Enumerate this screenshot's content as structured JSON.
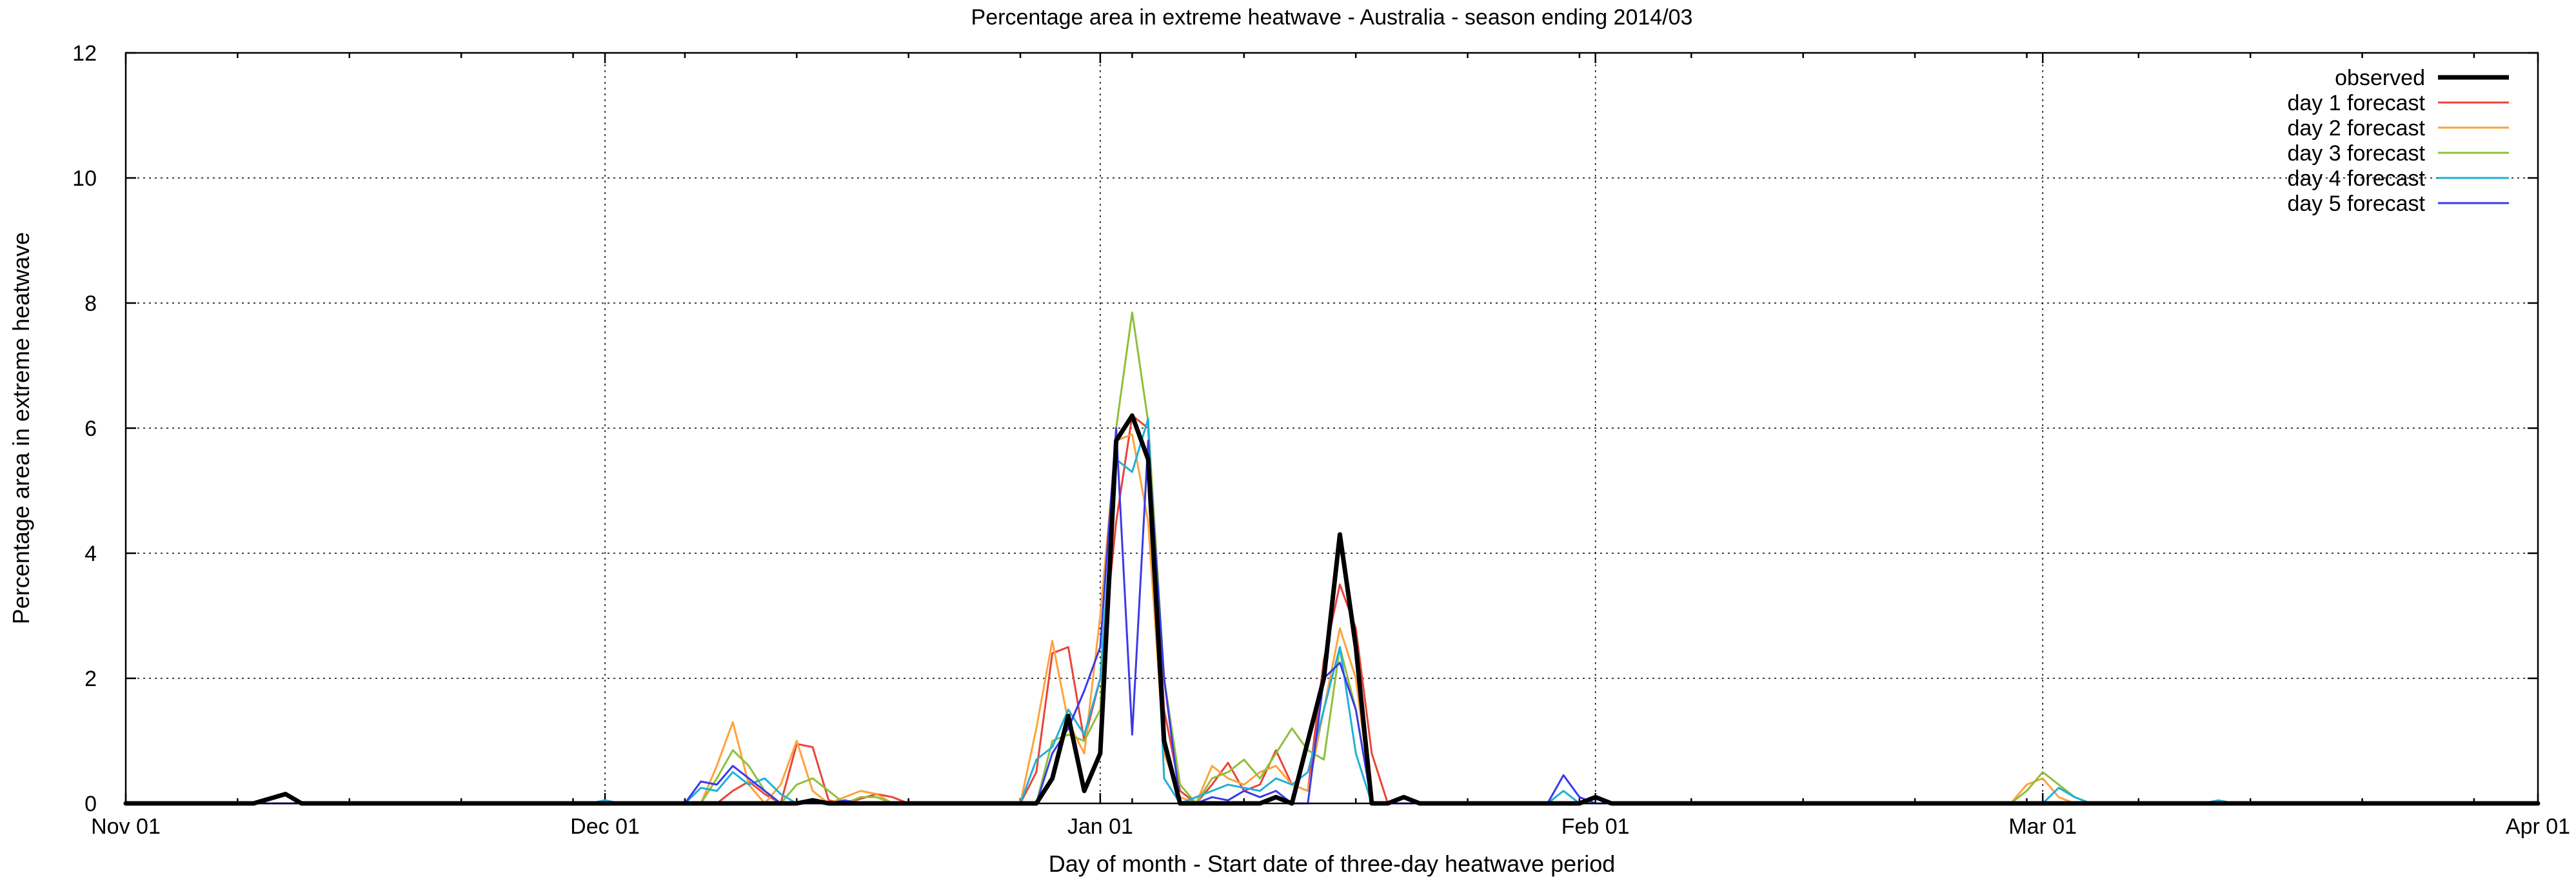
{
  "chart_data": {
    "type": "line",
    "title": "Percentage area in extreme heatwave - Australia - season ending 2014/03",
    "xlabel": "Day of month - Start date of three-day heatwave period",
    "ylabel": "Percentage area in extreme heatwave",
    "xlim": [
      0,
      151
    ],
    "ylim": [
      0,
      12
    ],
    "x_unit": "days since Nov 01 2013",
    "x_ticks": [
      {
        "label": "Nov 01",
        "value": 0
      },
      {
        "label": "Dec 01",
        "value": 30
      },
      {
        "label": "Jan 01",
        "value": 61
      },
      {
        "label": "Feb 01",
        "value": 92
      },
      {
        "label": "Mar 01",
        "value": 120
      },
      {
        "label": "Apr 01",
        "value": 151
      }
    ],
    "y_ticks": [
      0,
      2,
      4,
      6,
      8,
      10,
      12
    ],
    "grid": true,
    "legend_position": "top-right",
    "series": [
      {
        "name": "observed",
        "color": "#000000",
        "width": 7,
        "points": [
          [
            0,
            0
          ],
          [
            8,
            0
          ],
          [
            10,
            0.15
          ],
          [
            11,
            0
          ],
          [
            40,
            0
          ],
          [
            42,
            0
          ],
          [
            43,
            0.05
          ],
          [
            44,
            0
          ],
          [
            57,
            0
          ],
          [
            58,
            0.4
          ],
          [
            59,
            1.4
          ],
          [
            60,
            0.2
          ],
          [
            61,
            0.8
          ],
          [
            62,
            5.8
          ],
          [
            63,
            6.2
          ],
          [
            64,
            5.5
          ],
          [
            65,
            1.0
          ],
          [
            66,
            0
          ],
          [
            71,
            0
          ],
          [
            72,
            0.1
          ],
          [
            73,
            0
          ],
          [
            75,
            2.0
          ],
          [
            76,
            4.3
          ],
          [
            77,
            2.5
          ],
          [
            78,
            0
          ],
          [
            79,
            0
          ],
          [
            80,
            0.1
          ],
          [
            81,
            0
          ],
          [
            91,
            0
          ],
          [
            92,
            0.1
          ],
          [
            93,
            0
          ],
          [
            151,
            0
          ]
        ]
      },
      {
        "name": "day 1 forecast",
        "color": "#e8443a",
        "width": 3,
        "points": [
          [
            0,
            0
          ],
          [
            37,
            0
          ],
          [
            38,
            0.2
          ],
          [
            39,
            0.35
          ],
          [
            40,
            0.15
          ],
          [
            41,
            0
          ],
          [
            42,
            0.95
          ],
          [
            43,
            0.9
          ],
          [
            44,
            0.05
          ],
          [
            45,
            0
          ],
          [
            47,
            0.15
          ],
          [
            48,
            0.1
          ],
          [
            49,
            0
          ],
          [
            56,
            0
          ],
          [
            57,
            0.5
          ],
          [
            58,
            2.4
          ],
          [
            59,
            2.5
          ],
          [
            60,
            1.0
          ],
          [
            61,
            2.0
          ],
          [
            62,
            4.5
          ],
          [
            63,
            6.2
          ],
          [
            64,
            6.0
          ],
          [
            65,
            1.5
          ],
          [
            66,
            0.2
          ],
          [
            67,
            0
          ],
          [
            68,
            0.3
          ],
          [
            69,
            0.65
          ],
          [
            70,
            0.2
          ],
          [
            71,
            0.3
          ],
          [
            72,
            0.85
          ],
          [
            73,
            0.3
          ],
          [
            74,
            0.2
          ],
          [
            75,
            2.3
          ],
          [
            76,
            3.5
          ],
          [
            77,
            2.8
          ],
          [
            78,
            0.8
          ],
          [
            79,
            0
          ],
          [
            151,
            0
          ]
        ]
      },
      {
        "name": "day 2 forecast",
        "color": "#ffa23a",
        "width": 3,
        "points": [
          [
            0,
            0
          ],
          [
            36,
            0
          ],
          [
            37,
            0.6
          ],
          [
            38,
            1.3
          ],
          [
            39,
            0.3
          ],
          [
            40,
            0
          ],
          [
            41,
            0.3
          ],
          [
            42,
            1.0
          ],
          [
            43,
            0.2
          ],
          [
            44,
            0
          ],
          [
            45,
            0.1
          ],
          [
            46,
            0.2
          ],
          [
            47,
            0.15
          ],
          [
            48,
            0
          ],
          [
            56,
            0
          ],
          [
            57,
            1.2
          ],
          [
            58,
            2.6
          ],
          [
            59,
            1.3
          ],
          [
            60,
            0.8
          ],
          [
            61,
            3.0
          ],
          [
            62,
            5.8
          ],
          [
            63,
            5.9
          ],
          [
            64,
            4.5
          ],
          [
            65,
            0.8
          ],
          [
            66,
            0.1
          ],
          [
            67,
            0
          ],
          [
            68,
            0.6
          ],
          [
            69,
            0.4
          ],
          [
            70,
            0.3
          ],
          [
            71,
            0.5
          ],
          [
            72,
            0.6
          ],
          [
            73,
            0.3
          ],
          [
            74,
            0.2
          ],
          [
            75,
            1.5
          ],
          [
            76,
            2.8
          ],
          [
            77,
            2.0
          ],
          [
            78,
            0
          ],
          [
            118,
            0
          ],
          [
            119,
            0.3
          ],
          [
            120,
            0.4
          ],
          [
            121,
            0.1
          ],
          [
            122,
            0
          ],
          [
            151,
            0
          ]
        ]
      },
      {
        "name": "day 3 forecast",
        "color": "#8fbf3a",
        "width": 3,
        "points": [
          [
            0,
            0
          ],
          [
            36,
            0
          ],
          [
            37,
            0.4
          ],
          [
            38,
            0.85
          ],
          [
            39,
            0.6
          ],
          [
            40,
            0.2
          ],
          [
            41,
            0
          ],
          [
            42,
            0.3
          ],
          [
            43,
            0.4
          ],
          [
            44,
            0.2
          ],
          [
            45,
            0
          ],
          [
            46,
            0.1
          ],
          [
            47,
            0.1
          ],
          [
            48,
            0
          ],
          [
            57,
            0
          ],
          [
            58,
            1.0
          ],
          [
            59,
            1.1
          ],
          [
            60,
            1.0
          ],
          [
            61,
            1.5
          ],
          [
            62,
            6.0
          ],
          [
            63,
            7.85
          ],
          [
            64,
            6.1
          ],
          [
            65,
            2.0
          ],
          [
            66,
            0.3
          ],
          [
            67,
            0
          ],
          [
            68,
            0.4
          ],
          [
            69,
            0.5
          ],
          [
            70,
            0.7
          ],
          [
            71,
            0.4
          ],
          [
            72,
            0.8
          ],
          [
            73,
            1.2
          ],
          [
            74,
            0.85
          ],
          [
            75,
            0.7
          ],
          [
            76,
            2.5
          ],
          [
            77,
            1.5
          ],
          [
            78,
            0
          ],
          [
            118,
            0
          ],
          [
            119,
            0.2
          ],
          [
            120,
            0.5
          ],
          [
            121,
            0.3
          ],
          [
            122,
            0.1
          ],
          [
            123,
            0
          ],
          [
            151,
            0
          ]
        ]
      },
      {
        "name": "day 4 forecast",
        "color": "#1fb0d8",
        "width": 3,
        "points": [
          [
            0,
            0
          ],
          [
            29,
            0
          ],
          [
            30,
            0.05
          ],
          [
            31,
            0
          ],
          [
            35,
            0
          ],
          [
            36,
            0.25
          ],
          [
            37,
            0.2
          ],
          [
            38,
            0.5
          ],
          [
            39,
            0.3
          ],
          [
            40,
            0.4
          ],
          [
            41,
            0.15
          ],
          [
            42,
            0
          ],
          [
            56,
            0
          ],
          [
            57,
            0.7
          ],
          [
            58,
            0.9
          ],
          [
            59,
            1.5
          ],
          [
            60,
            1.1
          ],
          [
            61,
            2.0
          ],
          [
            62,
            5.5
          ],
          [
            63,
            5.3
          ],
          [
            64,
            6.15
          ],
          [
            65,
            0.4
          ],
          [
            66,
            0
          ],
          [
            67,
            0.1
          ],
          [
            68,
            0.2
          ],
          [
            69,
            0.3
          ],
          [
            70,
            0.25
          ],
          [
            71,
            0.2
          ],
          [
            72,
            0.4
          ],
          [
            73,
            0.3
          ],
          [
            74,
            0.5
          ],
          [
            75,
            1.5
          ],
          [
            76,
            2.5
          ],
          [
            77,
            0.8
          ],
          [
            78,
            0
          ],
          [
            89,
            0
          ],
          [
            90,
            0.2
          ],
          [
            91,
            0
          ],
          [
            120,
            0
          ],
          [
            121,
            0.25
          ],
          [
            122,
            0.1
          ],
          [
            123,
            0
          ],
          [
            130,
            0
          ],
          [
            131,
            0.05
          ],
          [
            132,
            0
          ],
          [
            151,
            0
          ]
        ]
      },
      {
        "name": "day 5 forecast",
        "color": "#3a3ae8",
        "width": 3,
        "points": [
          [
            0,
            0
          ],
          [
            35,
            0
          ],
          [
            36,
            0.35
          ],
          [
            37,
            0.3
          ],
          [
            38,
            0.6
          ],
          [
            39,
            0.4
          ],
          [
            40,
            0.2
          ],
          [
            41,
            0
          ],
          [
            44,
            0
          ],
          [
            45,
            0.05
          ],
          [
            46,
            0
          ],
          [
            57,
            0
          ],
          [
            58,
            0.8
          ],
          [
            59,
            1.2
          ],
          [
            60,
            1.8
          ],
          [
            61,
            2.5
          ],
          [
            62,
            6.0
          ],
          [
            63,
            1.1
          ],
          [
            64,
            5.8
          ],
          [
            65,
            2.0
          ],
          [
            66,
            0
          ],
          [
            67,
            0
          ],
          [
            68,
            0.1
          ],
          [
            69,
            0.05
          ],
          [
            70,
            0.2
          ],
          [
            71,
            0.1
          ],
          [
            72,
            0.2
          ],
          [
            73,
            0
          ],
          [
            74,
            0
          ],
          [
            75,
            2.0
          ],
          [
            76,
            2.25
          ],
          [
            77,
            1.5
          ],
          [
            78,
            0
          ],
          [
            89,
            0
          ],
          [
            90,
            0.45
          ],
          [
            91,
            0.1
          ],
          [
            92,
            0
          ],
          [
            151,
            0
          ]
        ]
      }
    ]
  }
}
